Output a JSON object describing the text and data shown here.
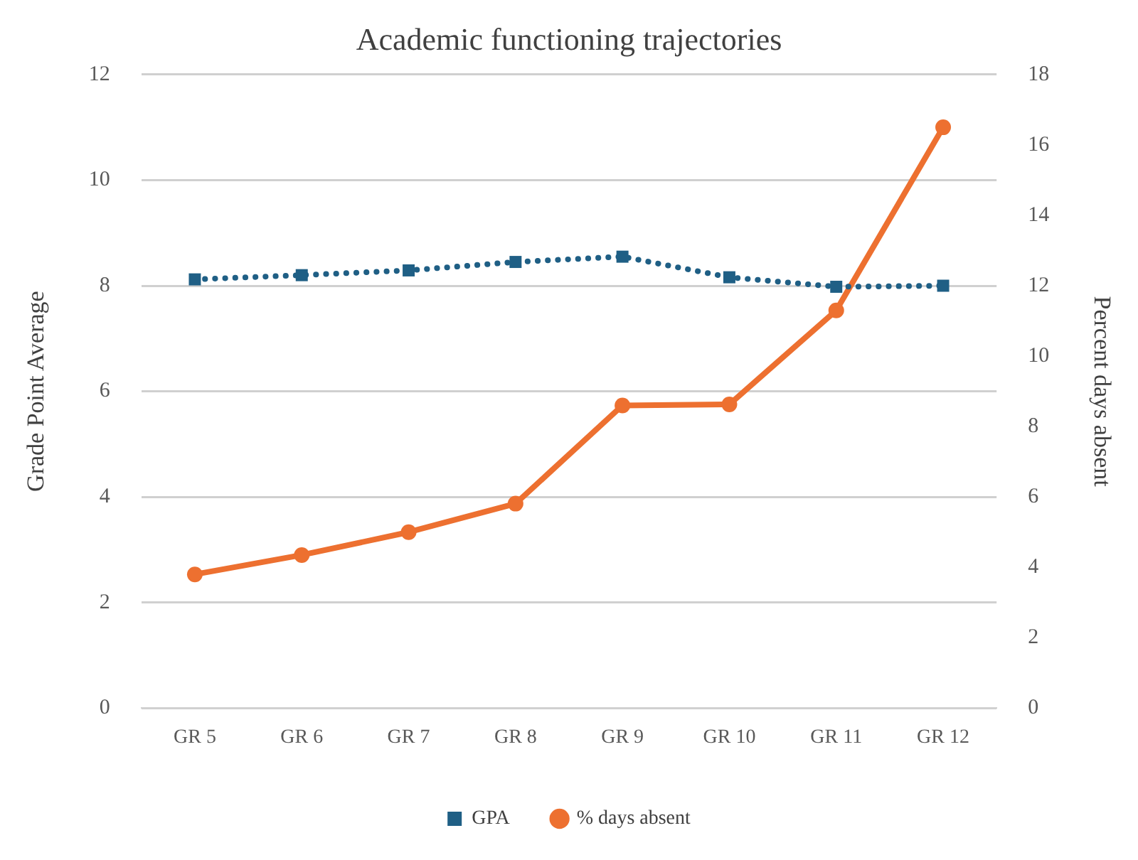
{
  "chart_data": {
    "type": "line",
    "title": "Academic functioning trajectories",
    "ylabel": "Grade Point Average",
    "y2label": "Percent days absent",
    "categories": [
      "GR 5",
      "GR 6",
      "GR 7",
      "GR 8",
      "GR 9",
      "GR 10",
      "GR 11",
      "GR 12"
    ],
    "series": [
      {
        "name": "GPA",
        "color": "#1f5f85",
        "values": [
          8.12,
          8.2,
          8.29,
          8.45,
          8.55,
          8.16,
          7.98,
          8.0
        ],
        "marker": "square",
        "line_style": "dotted"
      },
      {
        "name": "% days absent",
        "color": "#ed7030",
        "values": [
          3.8,
          4.35,
          5.0,
          5.81,
          8.6,
          8.63,
          11.3,
          16.5
        ],
        "axis": "y2",
        "marker": "circle",
        "line_style": "solid"
      }
    ],
    "ylim": [
      0,
      12
    ],
    "yticks": [
      0,
      2,
      4,
      6,
      8,
      10,
      12
    ],
    "y2lim": [
      0,
      18
    ],
    "y2ticks": [
      0,
      2,
      4,
      6,
      8,
      10,
      12,
      14,
      16,
      18
    ],
    "grid": "y",
    "legend": "bottom"
  }
}
